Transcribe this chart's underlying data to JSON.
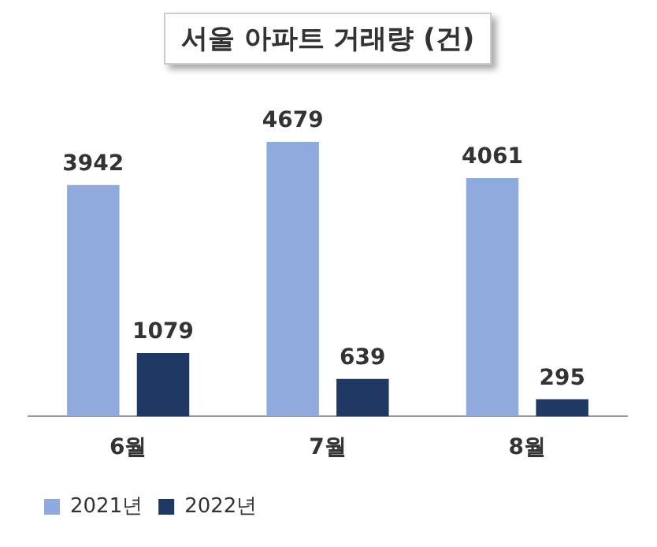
{
  "chart_data": {
    "type": "bar",
    "title": "서울 아파트 거래량 (건)",
    "categories": [
      "6월",
      "7월",
      "8월"
    ],
    "series": [
      {
        "name": "2021년",
        "color": "#8faadc",
        "values": [
          3942,
          4679,
          4061
        ]
      },
      {
        "name": "2022년",
        "color": "#1f3864",
        "values": [
          1079,
          639,
          295
        ]
      }
    ],
    "data_labels": true,
    "legend": "bottom left",
    "tick_labels": "x",
    "grid": false
  }
}
